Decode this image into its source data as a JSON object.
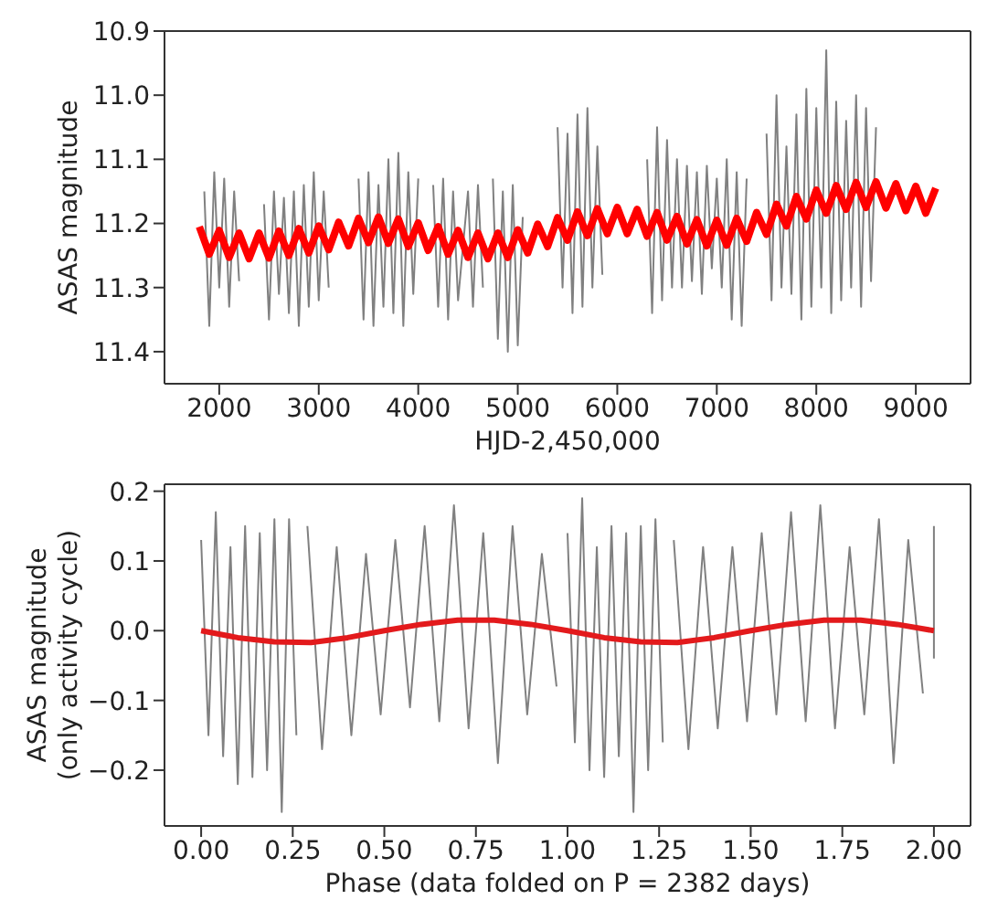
{
  "chart_data": [
    {
      "type": "line",
      "xlabel": "HJD-2,450,000",
      "ylabel": "ASAS magnitude",
      "xlim": [
        1450,
        9550
      ],
      "ylim": [
        11.45,
        10.9
      ],
      "xticks": [
        2000,
        3000,
        4000,
        5000,
        6000,
        7000,
        8000,
        9000
      ],
      "yticks": [
        {
          "value": 10.9,
          "label": "10.9"
        },
        {
          "value": 11.0,
          "label": "11.0"
        },
        {
          "value": 11.1,
          "label": "11.1"
        },
        {
          "value": 11.2,
          "label": "11.2"
        },
        {
          "value": 11.3,
          "label": "11.3"
        },
        {
          "value": 11.4,
          "label": "11.4"
        }
      ],
      "series": [
        {
          "color": "#808080",
          "x": [
            1850,
            1900,
            1950,
            2000,
            2050,
            2100,
            2150,
            2200,
            2300,
            2450,
            2500,
            2550,
            2600,
            2650,
            2700,
            2750,
            2800,
            2850,
            2900,
            2950,
            3000,
            3050,
            3100,
            3250,
            3400,
            3450,
            3500,
            3550,
            3600,
            3650,
            3700,
            3750,
            3800,
            3850,
            3900,
            3950,
            4000,
            4080,
            4150,
            4200,
            4250,
            4300,
            4350,
            4400,
            4500,
            4550,
            4600,
            4650,
            4700,
            4750,
            4800,
            4850,
            4900,
            4950,
            5000,
            5050,
            5250,
            5400,
            5450,
            5500,
            5550,
            5600,
            5650,
            5700,
            5750,
            5800,
            5850,
            6100,
            6300,
            6350,
            6400,
            6450,
            6500,
            6550,
            6600,
            6650,
            6700,
            6750,
            6800,
            6850,
            6900,
            6950,
            7000,
            7050,
            7100,
            7150,
            7200,
            7250,
            7300,
            7400,
            7500,
            7550,
            7600,
            7650,
            7700,
            7750,
            7800,
            7850,
            7900,
            7950,
            8000,
            8050,
            8100,
            8150,
            8200,
            8250,
            8300,
            8350,
            8400,
            8450,
            8500,
            8550,
            8600
          ],
          "values": [
            11.15,
            11.36,
            11.12,
            11.3,
            11.13,
            11.33,
            11.15,
            11.29,
            null,
            11.17,
            11.35,
            11.15,
            11.31,
            11.16,
            11.34,
            11.15,
            11.36,
            11.14,
            11.33,
            11.12,
            11.32,
            11.15,
            11.3,
            null,
            11.13,
            11.35,
            11.12,
            11.36,
            11.14,
            11.33,
            11.1,
            11.34,
            11.09,
            11.36,
            11.12,
            11.31,
            11.13,
            null,
            11.14,
            11.33,
            11.13,
            11.35,
            11.15,
            11.32,
            11.15,
            11.33,
            11.14,
            11.3,
            null,
            11.13,
            11.38,
            11.15,
            11.4,
            11.14,
            11.39,
            11.19,
            null,
            11.05,
            11.3,
            11.06,
            11.34,
            11.03,
            11.33,
            11.02,
            11.3,
            11.08,
            11.28,
            null,
            11.1,
            11.34,
            11.05,
            11.32,
            11.07,
            11.3,
            11.1,
            11.3,
            11.11,
            11.29,
            11.12,
            11.31,
            11.11,
            11.27,
            11.13,
            11.3,
            11.1,
            11.35,
            11.12,
            11.36,
            11.13,
            null,
            11.06,
            11.32,
            11.0,
            11.3,
            11.08,
            11.31,
            11.03,
            11.35,
            10.99,
            11.33,
            11.02,
            11.3,
            10.93,
            11.34,
            11.01,
            11.32,
            11.04,
            11.3,
            11.0,
            11.33,
            11.02,
            11.29,
            11.05
          ]
        },
        {
          "color": "#ff0000",
          "x": [
            1800,
            1900,
            2000,
            2100,
            2200,
            2300,
            2400,
            2500,
            2600,
            2700,
            2800,
            2900,
            3000,
            3100,
            3200,
            3300,
            3400,
            3500,
            3600,
            3700,
            3800,
            3900,
            4000,
            4100,
            4200,
            4300,
            4400,
            4500,
            4600,
            4700,
            4800,
            4900,
            5000,
            5100,
            5200,
            5300,
            5400,
            5500,
            5600,
            5700,
            5800,
            5900,
            6000,
            6100,
            6200,
            6300,
            6400,
            6500,
            6600,
            6700,
            6800,
            6900,
            7000,
            7100,
            7200,
            7300,
            7400,
            7500,
            7600,
            7700,
            7800,
            7900,
            8000,
            8100,
            8200,
            8300,
            8400,
            8500,
            8600,
            8700,
            8800,
            8900,
            9000,
            9100,
            9200
          ],
          "values": [
            11.205,
            11.248,
            11.211,
            11.253,
            11.215,
            11.255,
            11.215,
            11.254,
            11.212,
            11.25,
            11.208,
            11.246,
            11.204,
            11.241,
            11.198,
            11.235,
            11.192,
            11.23,
            11.19,
            11.231,
            11.193,
            11.236,
            11.199,
            11.242,
            11.205,
            11.248,
            11.211,
            11.253,
            11.215,
            11.255,
            11.215,
            11.253,
            11.21,
            11.246,
            11.201,
            11.236,
            11.191,
            11.226,
            11.182,
            11.219,
            11.177,
            11.216,
            11.175,
            11.216,
            11.178,
            11.22,
            11.183,
            11.226,
            11.189,
            11.232,
            11.194,
            11.235,
            11.195,
            11.234,
            11.192,
            11.228,
            11.183,
            11.217,
            11.17,
            11.204,
            11.158,
            11.193,
            11.148,
            11.184,
            11.141,
            11.178,
            11.136,
            11.175,
            11.135,
            11.176,
            11.138,
            11.18,
            11.142,
            11.184,
            11.145
          ]
        }
      ]
    },
    {
      "type": "line",
      "xlabel": "Phase (data folded on P = 2382 days)",
      "ylabel": "ASAS magnitude\n(only activity cycle)",
      "xlim": [
        -0.1,
        2.1
      ],
      "ylim": [
        -0.28,
        0.21
      ],
      "xticks": [
        {
          "value": 0,
          "label": "0.00"
        },
        {
          "value": 0.25,
          "label": "0.25"
        },
        {
          "value": 0.5,
          "label": "0.50"
        },
        {
          "value": 0.75,
          "label": "0.75"
        },
        {
          "value": 1,
          "label": "1.00"
        },
        {
          "value": 1.25,
          "label": "1.25"
        },
        {
          "value": 1.5,
          "label": "1.50"
        },
        {
          "value": 1.75,
          "label": "1.75"
        },
        {
          "value": 2,
          "label": "2.00"
        }
      ],
      "yticks": [
        {
          "value": -0.2,
          "label": "−0.2"
        },
        {
          "value": -0.1,
          "label": "−0.1"
        },
        {
          "value": 0,
          "label": "0.0"
        },
        {
          "value": 0.1,
          "label": "0.1"
        },
        {
          "value": 0.2,
          "label": "0.2"
        }
      ],
      "series": [
        {
          "color": "#808080",
          "x": [
            0,
            0.02,
            0.04,
            0.06,
            0.08,
            0.1,
            0.12,
            0.14,
            0.16,
            0.18,
            0.2,
            0.22,
            0.24,
            0.26,
            0.28,
            0.29,
            0.33,
            0.37,
            0.41,
            0.45,
            0.49,
            0.53,
            0.57,
            0.61,
            0.65,
            0.69,
            0.73,
            0.77,
            0.81,
            0.85,
            0.89,
            0.93,
            0.97,
            0.98,
            1,
            1.02,
            1.04,
            1.06,
            1.08,
            1.1,
            1.12,
            1.14,
            1.16,
            1.18,
            1.2,
            1.22,
            1.24,
            1.26,
            1.28,
            1.29,
            1.33,
            1.37,
            1.41,
            1.45,
            1.49,
            1.53,
            1.57,
            1.61,
            1.65,
            1.69,
            1.73,
            1.77,
            1.81,
            1.85,
            1.89,
            1.93,
            1.97,
            1.98,
            2,
            2
          ],
          "values": [
            0.13,
            -0.15,
            0.17,
            -0.18,
            0.12,
            -0.22,
            0.15,
            -0.21,
            0.14,
            -0.2,
            0.16,
            -0.26,
            0.16,
            -0.15,
            null,
            0.15,
            -0.17,
            0.12,
            -0.15,
            0.11,
            -0.12,
            0.13,
            -0.11,
            0.15,
            -0.13,
            0.18,
            -0.14,
            0.14,
            -0.19,
            0.15,
            -0.12,
            0.11,
            -0.08,
            null,
            0.14,
            -0.16,
            0.19,
            -0.2,
            0.12,
            -0.21,
            0.15,
            -0.18,
            0.14,
            -0.26,
            0.15,
            -0.2,
            0.16,
            -0.16,
            null,
            0.13,
            -0.17,
            0.12,
            -0.14,
            0.12,
            -0.13,
            0.14,
            -0.12,
            0.17,
            -0.13,
            0.18,
            -0.14,
            0.12,
            -0.12,
            0.16,
            -0.19,
            0.13,
            -0.09,
            null,
            0.15,
            -0.04
          ]
        },
        {
          "color": "#e31a1c",
          "x": [
            0,
            0.1,
            0.2,
            0.3,
            0.4,
            0.5,
            0.6,
            0.7,
            0.8,
            0.9,
            1,
            1.1,
            1.2,
            1.3,
            1.4,
            1.5,
            1.6,
            1.7,
            1.8,
            1.9,
            2
          ],
          "values": [
            0,
            -0.01,
            -0.016,
            -0.017,
            -0.01,
            0,
            0.009,
            0.015,
            0.015,
            0.009,
            0,
            -0.01,
            -0.016,
            -0.017,
            -0.01,
            0,
            0.009,
            0.015,
            0.015,
            0.009,
            0
          ]
        }
      ]
    }
  ]
}
